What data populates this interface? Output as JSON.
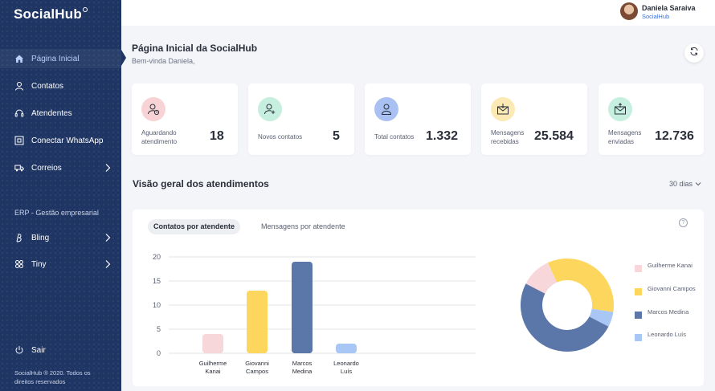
{
  "app": {
    "logo": "SocialHub"
  },
  "user": {
    "name": "Daniela Saraiva",
    "org": "SocialHub"
  },
  "sidebar": {
    "items": [
      {
        "label": "Página Inicial",
        "icon": "home-icon"
      },
      {
        "label": "Contatos",
        "icon": "user-icon"
      },
      {
        "label": "Atendentes",
        "icon": "headset-icon"
      },
      {
        "label": "Conectar WhatsApp",
        "icon": "qr-icon"
      },
      {
        "label": "Correios",
        "icon": "truck-icon"
      }
    ],
    "section_title": "ERP - Gestão empresarial",
    "erp_items": [
      {
        "label": "Bling",
        "icon": "bling-icon"
      },
      {
        "label": "Tiny",
        "icon": "tiny-icon"
      }
    ],
    "logout": "Sair",
    "footer": "SocialHub ® 2020. Todos os direitos reservados"
  },
  "header": {
    "title": "Página Inicial da SocialHub",
    "subtitle": "Bem-vinda Daniela,"
  },
  "stats": [
    {
      "label": "Aguardando atendimento",
      "value": "18",
      "color": "#f7d3d6",
      "icon": "user-clock-icon"
    },
    {
      "label": "Novos contatos",
      "value": "5",
      "color": "#c7efdf",
      "icon": "user-plus-icon"
    },
    {
      "label": "Total contatos",
      "value": "1.332",
      "color": "#a9c1f2",
      "icon": "user-icon"
    },
    {
      "label": "Mensagens recebidas",
      "value": "25.584",
      "color": "#fde9b4",
      "icon": "mail-in-icon"
    },
    {
      "label": "Mensagens enviadas",
      "value": "12.736",
      "color": "#c7efdf",
      "icon": "mail-out-icon"
    }
  ],
  "overview": {
    "title": "Visão geral dos atendimentos",
    "period": "30 dias",
    "tabs": [
      "Contatos por atendente",
      "Mensagens por atendente"
    ]
  },
  "chart_data": [
    {
      "type": "bar",
      "categories": [
        "Guilherme Kanai",
        "Giovanni Campos",
        "Marcos Medina",
        "Leonardo Luís"
      ],
      "values": [
        4,
        13,
        19,
        2
      ],
      "colors": [
        "#f8d7da",
        "#fdd65e",
        "#5b76a8",
        "#a9c7f5"
      ],
      "yticks": [
        0,
        5,
        10,
        15,
        20
      ],
      "ylim": [
        0,
        20
      ],
      "grid": true
    },
    {
      "type": "pie",
      "categories": [
        "Guilherme Kanai",
        "Giovanni Campos",
        "Marcos Medina",
        "Leonardo Luís"
      ],
      "values": [
        4,
        13,
        19,
        2
      ],
      "colors": [
        "#f8d7da",
        "#fdd65e",
        "#5b76a8",
        "#a9c7f5"
      ],
      "donut": true,
      "legend": "right"
    }
  ]
}
